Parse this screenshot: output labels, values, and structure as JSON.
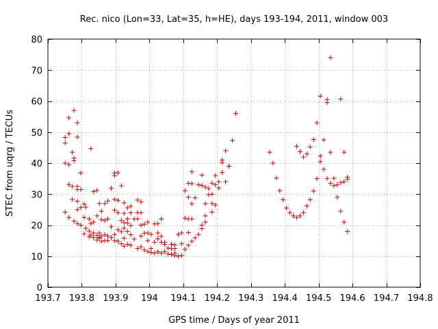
{
  "chart_data": {
    "type": "scatter",
    "title": "Rec. nico (Lon=33, Lat=35, h=HE), days 193-194, 2011, window 003",
    "xlabel": "GPS time / Days of year 2011",
    "ylabel": "STEC from uqrg / TECUs",
    "xlim": [
      193.7,
      194.8
    ],
    "ylim": [
      0,
      80
    ],
    "xticks": [
      193.7,
      193.8,
      193.9,
      194.0,
      194.1,
      194.2,
      194.3,
      194.4,
      194.5,
      194.6,
      194.7,
      194.8
    ],
    "xtick_labels": [
      "193.7",
      "193.8",
      "193.9",
      "194",
      "194.1",
      "194.2",
      "194.3",
      "194.4",
      "194.5",
      "194.6",
      "194.7",
      "194.8"
    ],
    "yticks": [
      0,
      10,
      20,
      30,
      40,
      50,
      60,
      70,
      80
    ],
    "ytick_labels": [
      "0",
      "10",
      "20",
      "30",
      "40",
      "50",
      "60",
      "70",
      "80"
    ],
    "grid": true,
    "marker": "+",
    "color": "#cc0000",
    "series": [
      {
        "name": "STEC",
        "points": [
          [
            193.751,
            46.5
          ],
          [
            193.751,
            48.3
          ],
          [
            193.751,
            40.0
          ],
          [
            193.751,
            24.2
          ],
          [
            193.762,
            54.6
          ],
          [
            193.762,
            49.5
          ],
          [
            193.762,
            39.5
          ],
          [
            193.762,
            33.1
          ],
          [
            193.762,
            22.5
          ],
          [
            193.772,
            43.5
          ],
          [
            193.772,
            32.5
          ],
          [
            193.772,
            28.3
          ],
          [
            193.777,
            57.0
          ],
          [
            193.777,
            41.6
          ],
          [
            193.777,
            40.8
          ],
          [
            193.777,
            21.3
          ],
          [
            193.787,
            53.0
          ],
          [
            193.787,
            48.4
          ],
          [
            193.787,
            32.5
          ],
          [
            193.787,
            31.5
          ],
          [
            193.787,
            27.7
          ],
          [
            193.787,
            25.0
          ],
          [
            193.787,
            20.5
          ],
          [
            193.797,
            36.8
          ],
          [
            193.797,
            31.5
          ],
          [
            193.797,
            25.7
          ],
          [
            193.797,
            20.0
          ],
          [
            193.807,
            26.8
          ],
          [
            193.807,
            22.5
          ],
          [
            193.807,
            17.2
          ],
          [
            193.812,
            25.8
          ],
          [
            193.812,
            19.0
          ],
          [
            193.822,
            22.0
          ],
          [
            193.822,
            18.1
          ],
          [
            193.822,
            16.3
          ],
          [
            193.827,
            44.7
          ],
          [
            193.827,
            20.5
          ],
          [
            193.827,
            16.8
          ],
          [
            193.835,
            30.8
          ],
          [
            193.835,
            21.0
          ],
          [
            193.835,
            17.5
          ],
          [
            193.835,
            16.0
          ],
          [
            193.845,
            31.2
          ],
          [
            193.845,
            23.0
          ],
          [
            193.845,
            16.7
          ],
          [
            193.845,
            15.2
          ],
          [
            193.852,
            27.0
          ],
          [
            193.852,
            17.5
          ],
          [
            193.852,
            16.0
          ],
          [
            193.852,
            15.8
          ],
          [
            193.858,
            24.5
          ],
          [
            193.858,
            21.8
          ],
          [
            193.858,
            16.5
          ],
          [
            193.858,
            14.8
          ],
          [
            193.868,
            27.0
          ],
          [
            193.868,
            21.5
          ],
          [
            193.868,
            16.9
          ],
          [
            193.868,
            15.0
          ],
          [
            193.877,
            27.8
          ],
          [
            193.877,
            22.0
          ],
          [
            193.877,
            16.5
          ],
          [
            193.877,
            15.0
          ],
          [
            193.887,
            31.9
          ],
          [
            193.887,
            19.5
          ],
          [
            193.887,
            16.0
          ],
          [
            193.897,
            36.8
          ],
          [
            193.897,
            36.0
          ],
          [
            193.897,
            28.3
          ],
          [
            193.897,
            24.8
          ],
          [
            193.897,
            17.0
          ],
          [
            193.897,
            15.0
          ],
          [
            193.907,
            36.9
          ],
          [
            193.907,
            28.0
          ],
          [
            193.907,
            24.0
          ],
          [
            193.907,
            18.5
          ],
          [
            193.907,
            14.8
          ],
          [
            193.917,
            32.7
          ],
          [
            193.917,
            21.5
          ],
          [
            193.917,
            17.9
          ],
          [
            193.917,
            14.0
          ],
          [
            193.925,
            27.2
          ],
          [
            193.925,
            23.8
          ],
          [
            193.925,
            20.8
          ],
          [
            193.925,
            19.0
          ],
          [
            193.925,
            15.8
          ],
          [
            193.925,
            13.2
          ],
          [
            193.935,
            25.6
          ],
          [
            193.935,
            22.0
          ],
          [
            193.935,
            20.7
          ],
          [
            193.935,
            18.0
          ],
          [
            193.935,
            13.8
          ],
          [
            193.945,
            26.1
          ],
          [
            193.945,
            24.0
          ],
          [
            193.945,
            19.9
          ],
          [
            193.945,
            16.9
          ],
          [
            193.945,
            13.5
          ],
          [
            193.955,
            22.0
          ],
          [
            193.955,
            15.5
          ],
          [
            193.965,
            28.1
          ],
          [
            193.965,
            24.0
          ],
          [
            193.965,
            22.0
          ],
          [
            193.965,
            12.5
          ],
          [
            193.975,
            27.5
          ],
          [
            193.975,
            24.0
          ],
          [
            193.975,
            20.0
          ],
          [
            193.975,
            16.5
          ],
          [
            193.975,
            13.0
          ],
          [
            193.985,
            20.3
          ],
          [
            193.985,
            17.4
          ],
          [
            193.985,
            12.0
          ],
          [
            193.995,
            21.0
          ],
          [
            193.995,
            17.5
          ],
          [
            193.995,
            15.0
          ],
          [
            193.995,
            11.5
          ],
          [
            194.005,
            17.0
          ],
          [
            194.005,
            12.5
          ],
          [
            194.005,
            11.2
          ],
          [
            194.015,
            20.4
          ],
          [
            194.015,
            14.5
          ],
          [
            194.015,
            11.0
          ],
          [
            194.025,
            20.5
          ],
          [
            194.025,
            17.5
          ],
          [
            194.025,
            15.6
          ],
          [
            194.025,
            11.4
          ],
          [
            194.035,
            22.0
          ],
          [
            194.035,
            16.4
          ],
          [
            194.035,
            14.5
          ],
          [
            194.035,
            11.0
          ],
          [
            194.045,
            14.5
          ],
          [
            194.045,
            13.8
          ],
          [
            194.045,
            11.5
          ],
          [
            194.055,
            12.6
          ],
          [
            194.055,
            10.7
          ],
          [
            194.065,
            13.8
          ],
          [
            194.065,
            12.4
          ],
          [
            194.065,
            10.5
          ],
          [
            194.075,
            13.6
          ],
          [
            194.075,
            12.5
          ],
          [
            194.075,
            11.0
          ],
          [
            194.075,
            10.2
          ],
          [
            194.085,
            17.0
          ],
          [
            194.085,
            10.0
          ],
          [
            194.095,
            17.5
          ],
          [
            194.095,
            14.0
          ],
          [
            194.095,
            10.2
          ],
          [
            194.105,
            31.1
          ],
          [
            194.105,
            22.3
          ],
          [
            194.105,
            12.2
          ],
          [
            194.115,
            33.5
          ],
          [
            194.115,
            29.0
          ],
          [
            194.115,
            22.0
          ],
          [
            194.115,
            17.6
          ],
          [
            194.115,
            13.5
          ],
          [
            194.125,
            37.2
          ],
          [
            194.125,
            33.4
          ],
          [
            194.125,
            26.9
          ],
          [
            194.125,
            22.0
          ],
          [
            194.125,
            14.8
          ],
          [
            194.135,
            28.8
          ],
          [
            194.135,
            15.9
          ],
          [
            194.145,
            33.0
          ],
          [
            194.145,
            17.0
          ],
          [
            194.155,
            36.1
          ],
          [
            194.155,
            32.8
          ],
          [
            194.155,
            20.0
          ],
          [
            194.155,
            18.9
          ],
          [
            194.165,
            32.3
          ],
          [
            194.165,
            26.9
          ],
          [
            194.165,
            23.0
          ],
          [
            194.165,
            21.0
          ],
          [
            194.175,
            31.8
          ],
          [
            194.175,
            29.8
          ],
          [
            194.185,
            33.5
          ],
          [
            194.185,
            30.0
          ],
          [
            194.185,
            27.0
          ],
          [
            194.185,
            24.2
          ],
          [
            194.195,
            36.0
          ],
          [
            194.195,
            33.0
          ],
          [
            194.195,
            26.5
          ],
          [
            194.205,
            34.0
          ],
          [
            194.205,
            32.0
          ],
          [
            194.215,
            41.0
          ],
          [
            194.215,
            40.2
          ],
          [
            194.215,
            37.0
          ],
          [
            194.225,
            44.0
          ],
          [
            194.225,
            34.0
          ],
          [
            194.235,
            39.0
          ],
          [
            194.245,
            47.3
          ],
          [
            194.255,
            56.0
          ],
          [
            194.355,
            43.5
          ],
          [
            194.365,
            40.0
          ],
          [
            194.375,
            35.2
          ],
          [
            194.385,
            31.1
          ],
          [
            194.395,
            28.2
          ],
          [
            194.405,
            25.5
          ],
          [
            194.415,
            24.0
          ],
          [
            194.425,
            23.0
          ],
          [
            194.435,
            45.4
          ],
          [
            194.435,
            22.5
          ],
          [
            194.445,
            43.7
          ],
          [
            194.445,
            23.0
          ],
          [
            194.455,
            42.0
          ],
          [
            194.455,
            24.0
          ],
          [
            194.465,
            43.0
          ],
          [
            194.465,
            26.2
          ],
          [
            194.475,
            45.2
          ],
          [
            194.475,
            28.2
          ],
          [
            194.485,
            47.6
          ],
          [
            194.485,
            31.0
          ],
          [
            194.495,
            53.0
          ],
          [
            194.495,
            35.0
          ],
          [
            194.505,
            61.6
          ],
          [
            194.505,
            42.3
          ],
          [
            194.505,
            40.5
          ],
          [
            194.515,
            47.5
          ],
          [
            194.515,
            38.0
          ],
          [
            194.525,
            60.5
          ],
          [
            194.525,
            59.5
          ],
          [
            194.525,
            35.0
          ],
          [
            194.535,
            74.0
          ],
          [
            194.535,
            43.5
          ],
          [
            194.535,
            33.5
          ],
          [
            194.545,
            35.1
          ],
          [
            194.545,
            32.7
          ],
          [
            194.555,
            33.0
          ],
          [
            194.555,
            29.0
          ],
          [
            194.565,
            60.7
          ],
          [
            194.565,
            33.7
          ],
          [
            194.565,
            24.5
          ],
          [
            194.575,
            43.5
          ],
          [
            194.575,
            34.0
          ],
          [
            194.575,
            21.0
          ],
          [
            194.585,
            35.5
          ],
          [
            194.585,
            34.8
          ],
          [
            194.585,
            18.0
          ]
        ]
      }
    ]
  }
}
